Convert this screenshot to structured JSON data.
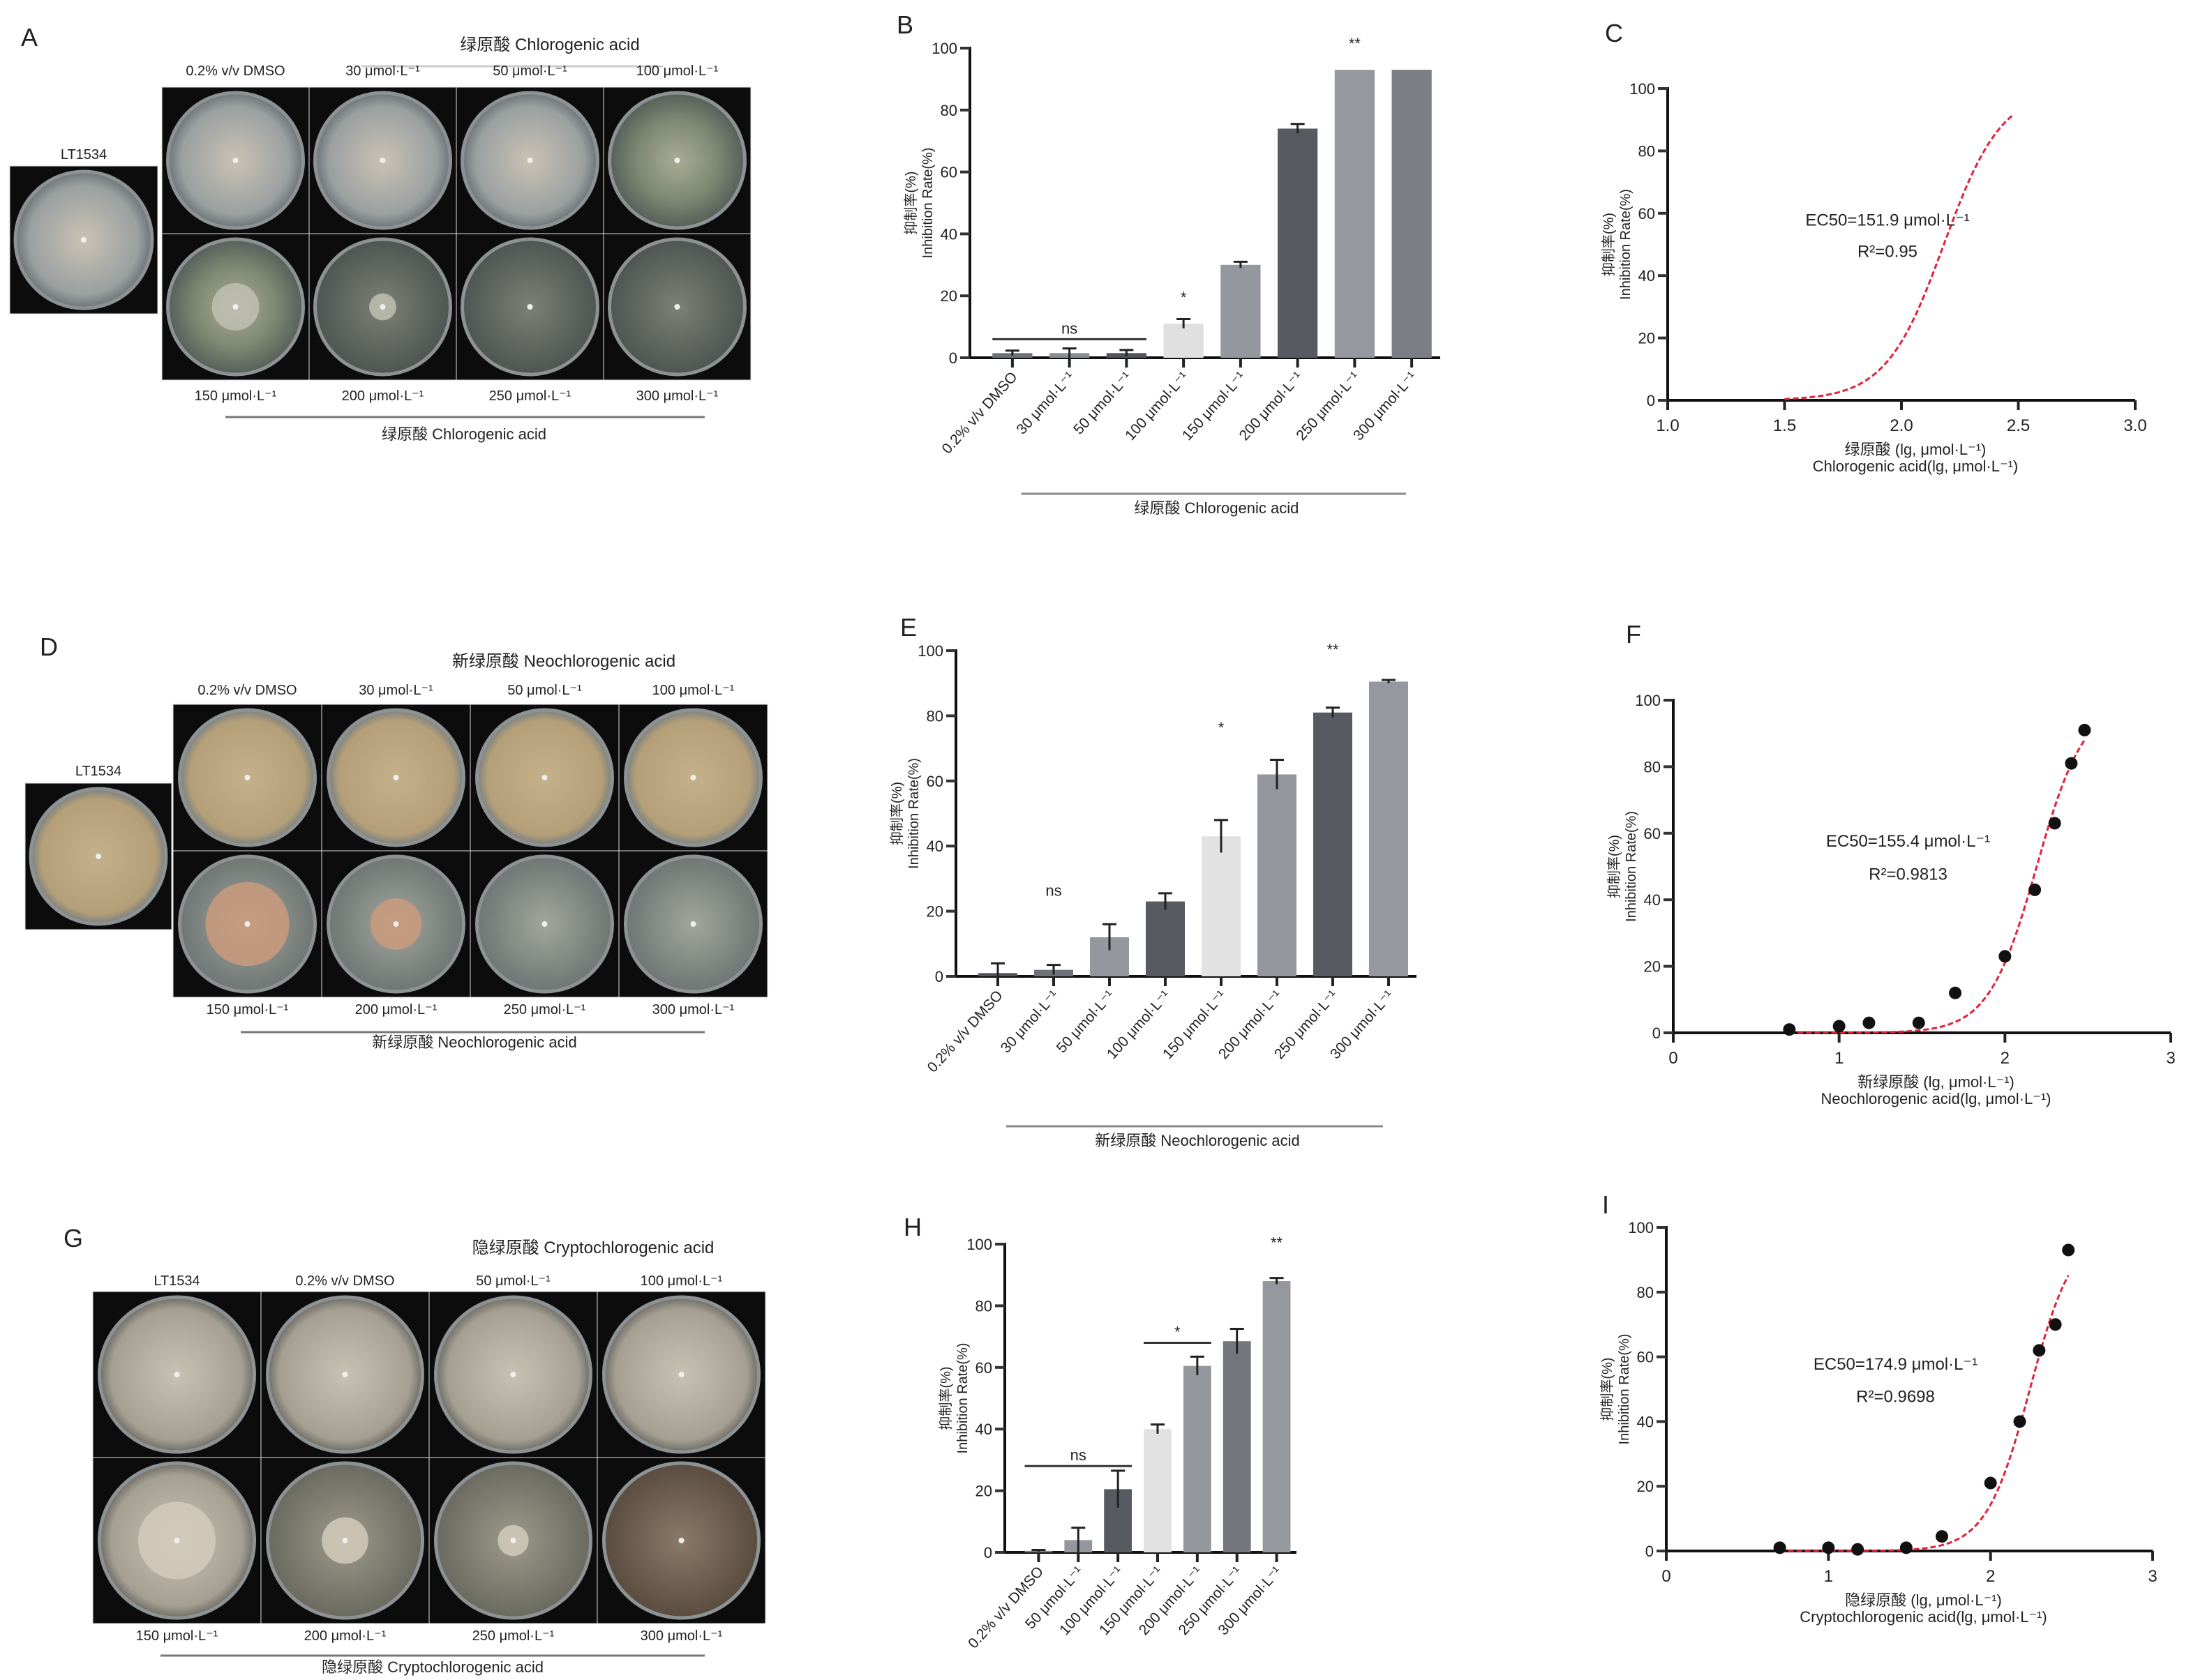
{
  "panels": {
    "A": {
      "letter": "A",
      "strain_label": "LT1534",
      "title": "绿原酸 Chlorogenic acid",
      "top_labels": [
        "0.2% v/v DMSO",
        "30 μmol·L⁻¹",
        "50 μmol·L⁻¹",
        "100 μmol·L⁻¹"
      ],
      "bottom_labels": [
        "150 μmol·L⁻¹",
        "200 μmol·L⁻¹",
        "250 μmol·L⁻¹",
        "300 μmol·L⁻¹"
      ],
      "caption": "绿原酸 Chlorogenic acid"
    },
    "D": {
      "letter": "D",
      "strain_label": "LT1534",
      "title": "新绿原酸 Neochlorogenic acid",
      "top_labels": [
        "0.2% v/v DMSO",
        "30 μmol·L⁻¹",
        "50 μmol·L⁻¹",
        "100 μmol·L⁻¹"
      ],
      "bottom_labels": [
        "150 μmol·L⁻¹",
        "200 μmol·L⁻¹",
        "250 μmol·L⁻¹",
        "300 μmol·L⁻¹"
      ],
      "caption": "新绿原酸 Neochlorogenic acid"
    },
    "G": {
      "letter": "G",
      "title": "隐绿原酸 Cryptochlorogenic acid",
      "top_labels": [
        "LT1534",
        "0.2% v/v DMSO",
        "50 μmol·L⁻¹",
        "100 μmol·L⁻¹"
      ],
      "bottom_labels": [
        "150 μmol·L⁻¹",
        "200 μmol·L⁻¹",
        "250 μmol·L⁻¹",
        "300 μmol·L⁻¹"
      ],
      "caption": "隐绿原酸 Cryptochlorogenic acid"
    }
  },
  "chart_data": [
    {
      "id": "B",
      "letter": "B",
      "type": "bar",
      "categories": [
        "0.2% v/v DMSO",
        "30 μmol·L⁻¹",
        "50 μmol·L⁻¹",
        "100 μmol·L⁻¹",
        "150 μmol·L⁻¹",
        "200 μmol·L⁻¹",
        "250 μmol·L⁻¹",
        "300 μmol·L⁻¹"
      ],
      "values": [
        1.5,
        1.5,
        1.5,
        11,
        30,
        74,
        93,
        93
      ],
      "errors": [
        0.8,
        1.5,
        1,
        1.5,
        1,
        1.5,
        0,
        0
      ],
      "ylabel": [
        "抑制率(%)",
        "Inhibition Rate(%)"
      ],
      "xlabel": "绿原酸 Chlorogenic acid",
      "ylim": [
        0,
        100
      ],
      "yticks": [
        0,
        20,
        40,
        60,
        80,
        100
      ],
      "colors": [
        "#6f7178",
        "#8a8d93",
        "#50535a",
        "#e0e0e0",
        "#94979d",
        "#575a61",
        "#95989e",
        "#7b7e84"
      ],
      "annotations": [
        {
          "text": "ns",
          "from": 0,
          "to": 2,
          "y": 6
        },
        {
          "text": "*",
          "from": 3,
          "to": 3,
          "y": 16
        },
        {
          "text": "**",
          "from": 6,
          "to": 6,
          "y": 98
        }
      ]
    },
    {
      "id": "C",
      "letter": "C",
      "type": "line",
      "ec50_text": "EC50=151.9 μmol·L⁻¹",
      "ec50": 151.9,
      "r2_text": "R²=0.95",
      "x_range_curve": [
        1.5,
        2.48
      ],
      "points": [],
      "ylabel": [
        "抑制率(%)",
        "Inhibition Rate(%)"
      ],
      "xlabel": [
        "绿原酸 (lg, μmol·L⁻¹)",
        "Chlorogenic acid(lg, μmol·L⁻¹)"
      ],
      "xlim": [
        1.0,
        3.0
      ],
      "xticks": [
        "1.0",
        "1.5",
        "2.0",
        "2.5",
        "3.0"
      ],
      "ylim": [
        0,
        100
      ],
      "yticks": [
        0,
        20,
        40,
        60,
        80,
        100
      ],
      "curve_color": "#e0223a"
    },
    {
      "id": "E",
      "letter": "E",
      "type": "bar",
      "categories": [
        "0.2% v/v DMSO",
        "30 μmol·L⁻¹",
        "50 μmol·L⁻¹",
        "100 μmol·L⁻¹",
        "150 μmol·L⁻¹",
        "200 μmol·L⁻¹",
        "250 μmol·L⁻¹",
        "300 μmol·L⁻¹"
      ],
      "values": [
        1,
        2,
        12,
        23,
        43,
        62,
        81,
        90.5
      ],
      "errors": [
        3,
        1.5,
        4,
        2.5,
        5,
        4.5,
        1.5,
        0.5
      ],
      "ylabel": [
        "抑制率(%)",
        "Inhibition Rate(%)"
      ],
      "xlabel": "新绿原酸 Neochlorogenic acid",
      "ylim": [
        0,
        100
      ],
      "yticks": [
        0,
        20,
        40,
        60,
        80,
        100
      ],
      "colors": [
        "#50535a",
        "#6f7178",
        "#94979d",
        "#575a61",
        "#e2e2e2",
        "#94979d",
        "#575a61",
        "#95989e"
      ],
      "annotations": [
        {
          "text": "ns",
          "from": 1,
          "to": 1,
          "y": 23
        },
        {
          "text": "*",
          "from": 4,
          "to": 4,
          "y": 73
        },
        {
          "text": "**",
          "from": 6,
          "to": 6,
          "y": 97
        }
      ]
    },
    {
      "id": "F",
      "letter": "F",
      "type": "scatter",
      "ec50_text": "EC50=155.4 μmol·L⁻¹",
      "ec50": 155.4,
      "r2_text": "R²=0.9813",
      "x_range_curve": [
        0.7,
        2.48
      ],
      "points": [
        [
          0.7,
          1
        ],
        [
          1.0,
          2
        ],
        [
          1.18,
          3
        ],
        [
          1.48,
          3
        ],
        [
          1.7,
          12
        ],
        [
          2.0,
          23
        ],
        [
          2.18,
          43
        ],
        [
          2.3,
          63
        ],
        [
          2.4,
          81
        ],
        [
          2.48,
          91
        ]
      ],
      "ylabel": [
        "抑制率(%)",
        "Inhibition Rate(%)"
      ],
      "xlabel": [
        "新绿原酸 (lg, μmol·L⁻¹)",
        "Neochlorogenic acid(lg, μmol·L⁻¹)"
      ],
      "xlim": [
        0,
        3
      ],
      "xticks": [
        "0",
        "1",
        "2",
        "3"
      ],
      "ylim": [
        0,
        100
      ],
      "yticks": [
        0,
        20,
        40,
        60,
        80,
        100
      ],
      "curve_color": "#e0223a"
    },
    {
      "id": "H",
      "letter": "H",
      "type": "bar",
      "categories": [
        "0.2% v/v DMSO",
        "50 μmol·L⁻¹",
        "100 μmol·L⁻¹",
        "150 μmol·L⁻¹",
        "200 μmol·L⁻¹",
        "250 μmol·L⁻¹",
        "300 μmol·L⁻¹"
      ],
      "values": [
        0.5,
        4,
        20.5,
        40,
        60.5,
        68.5,
        88
      ],
      "errors": [
        0.3,
        4,
        6,
        1.5,
        3,
        4,
        1
      ],
      "ylabel": [
        "抑制率(%)",
        "Inhibition Rate(%)"
      ],
      "xlabel": "隐绿原酸 Cryptochlorogenic acid",
      "ylim": [
        0,
        100
      ],
      "yticks": [
        0,
        20,
        40,
        60,
        80,
        100
      ],
      "colors": [
        "#7b7e84",
        "#94979d",
        "#575a61",
        "#e2e2e2",
        "#94979d",
        "#73767c",
        "#95989e"
      ],
      "annotations": [
        {
          "text": "ns",
          "from": 0,
          "to": 2,
          "y": 28
        },
        {
          "text": "*",
          "from": 3,
          "to": 4,
          "y": 68
        },
        {
          "text": "**",
          "from": 6,
          "to": 6,
          "y": 97
        }
      ]
    },
    {
      "id": "I",
      "letter": "I",
      "type": "scatter",
      "ec50_text": "EC50=174.9 μmol·L⁻¹",
      "ec50": 174.9,
      "r2_text": "R²=0.9698",
      "x_range_curve": [
        0.7,
        2.48
      ],
      "points": [
        [
          0.7,
          1
        ],
        [
          1.0,
          1
        ],
        [
          1.18,
          0.5
        ],
        [
          1.48,
          1
        ],
        [
          1.7,
          4.5
        ],
        [
          2.0,
          21
        ],
        [
          2.18,
          40
        ],
        [
          2.3,
          62
        ],
        [
          2.4,
          70
        ],
        [
          2.48,
          93
        ]
      ],
      "ylabel": [
        "抑制率(%)",
        "Inhibition Rate(%)"
      ],
      "xlabel": [
        "隐绿原酸 (lg, μmol·L⁻¹)",
        "Cryptochlorogenic acid(lg, μmol·L⁻¹)"
      ],
      "xlim": [
        0,
        3
      ],
      "xticks": [
        "0",
        "1",
        "2",
        "3"
      ],
      "ylim": [
        0,
        100
      ],
      "yticks": [
        0,
        20,
        40,
        60,
        80,
        100
      ],
      "curve_color": "#e0223a"
    }
  ]
}
